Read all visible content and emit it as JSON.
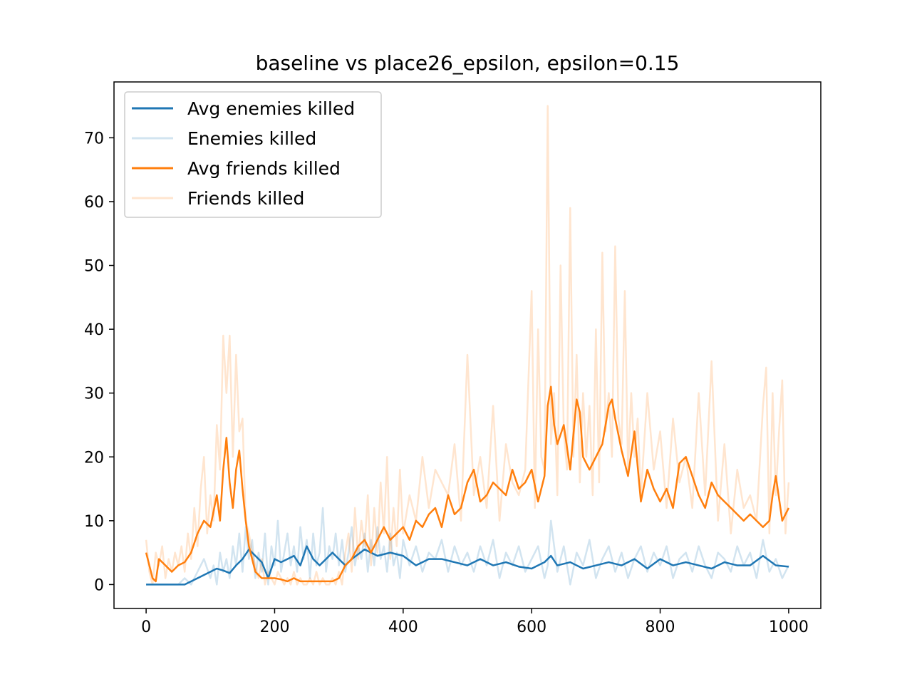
{
  "chart_data": {
    "type": "line",
    "title": "baseline vs place26_epsilon, epsilon=0.15",
    "xlabel": "",
    "ylabel": "",
    "xlim": [
      -50,
      1050
    ],
    "ylim": [
      -3.75,
      78.75
    ],
    "xticks": [
      0,
      200,
      400,
      600,
      800,
      1000
    ],
    "yticks": [
      0,
      10,
      20,
      30,
      40,
      50,
      60,
      70
    ],
    "grid": false,
    "legend_position": "top-left",
    "colors": {
      "enemies": "#1f77b4",
      "enemies_raw": "#1f77b4",
      "friends": "#ff7f0e",
      "friends_raw": "#ff7f0e"
    },
    "series": [
      {
        "name": "Avg enemies killed",
        "style": "solid",
        "opacity": 1.0,
        "color": "#1f77b4",
        "x": [
          0,
          20,
          40,
          60,
          80,
          100,
          110,
          120,
          130,
          140,
          150,
          160,
          170,
          180,
          190,
          200,
          210,
          220,
          230,
          240,
          250,
          260,
          270,
          280,
          290,
          300,
          310,
          320,
          340,
          360,
          380,
          400,
          420,
          440,
          460,
          480,
          500,
          520,
          540,
          560,
          580,
          600,
          620,
          630,
          640,
          660,
          680,
          700,
          720,
          740,
          760,
          780,
          800,
          820,
          840,
          860,
          880,
          900,
          920,
          940,
          960,
          980,
          1000
        ],
        "values": [
          0,
          0,
          0,
          0,
          1,
          2,
          2.5,
          2.2,
          1.8,
          3,
          4,
          5.5,
          4.5,
          3.5,
          1,
          4,
          3.5,
          4,
          4.5,
          3,
          6,
          4,
          3,
          4,
          5,
          4,
          3,
          4,
          5.5,
          4.5,
          5,
          4.5,
          3,
          4,
          4,
          3.5,
          3,
          4,
          3,
          3.5,
          2.8,
          2.5,
          3.5,
          4.5,
          3,
          3.5,
          2.5,
          3,
          3.5,
          3,
          4,
          2.5,
          4,
          3,
          3.5,
          3,
          2.5,
          3.5,
          3,
          3,
          4.5,
          3,
          2.8
        ]
      },
      {
        "name": "Enemies killed",
        "style": "solid",
        "opacity": 0.2,
        "color": "#1f77b4",
        "x": [
          0,
          10,
          20,
          30,
          40,
          50,
          60,
          70,
          80,
          90,
          100,
          105,
          110,
          115,
          120,
          125,
          130,
          135,
          140,
          145,
          150,
          155,
          160,
          165,
          170,
          175,
          180,
          185,
          190,
          195,
          200,
          205,
          210,
          215,
          220,
          225,
          230,
          235,
          240,
          245,
          250,
          255,
          260,
          265,
          270,
          275,
          280,
          285,
          290,
          295,
          300,
          305,
          310,
          315,
          320,
          325,
          330,
          335,
          340,
          345,
          350,
          355,
          360,
          365,
          370,
          375,
          380,
          385,
          390,
          395,
          400,
          410,
          420,
          430,
          440,
          450,
          460,
          470,
          480,
          490,
          500,
          510,
          520,
          530,
          540,
          550,
          560,
          570,
          580,
          590,
          600,
          610,
          620,
          625,
          630,
          640,
          650,
          660,
          670,
          680,
          690,
          700,
          710,
          720,
          730,
          740,
          750,
          760,
          770,
          780,
          790,
          800,
          810,
          820,
          830,
          840,
          850,
          860,
          870,
          880,
          890,
          900,
          910,
          920,
          930,
          940,
          950,
          960,
          970,
          980,
          990,
          1000
        ],
        "values": [
          0,
          0,
          0,
          0,
          0,
          0,
          1,
          0,
          2,
          4,
          1,
          3,
          0,
          5,
          2,
          4,
          1,
          6,
          3,
          8,
          2,
          9,
          4,
          7,
          1,
          5,
          2,
          8,
          0,
          6,
          3,
          10,
          2,
          5,
          8,
          3,
          6,
          2,
          9,
          4,
          7,
          1,
          8,
          3,
          5,
          12,
          2,
          6,
          4,
          8,
          3,
          7,
          2,
          5,
          9,
          3,
          6,
          4,
          8,
          2,
          7,
          3,
          9,
          4,
          6,
          2,
          8,
          3,
          5,
          1,
          7,
          3,
          6,
          2,
          5,
          4,
          7,
          2,
          6,
          3,
          5,
          2,
          6,
          3,
          7,
          1,
          5,
          3,
          6,
          2,
          4,
          6,
          1,
          3,
          10,
          2,
          6,
          0,
          5,
          3,
          7,
          1,
          4,
          6,
          2,
          5,
          1,
          4,
          6,
          2,
          5,
          3,
          6,
          1,
          4,
          5,
          2,
          6,
          3,
          1,
          5,
          4,
          2,
          6,
          3,
          5,
          1,
          7,
          2,
          4,
          1,
          3
        ]
      },
      {
        "name": "Avg friends killed",
        "style": "solid",
        "opacity": 1.0,
        "color": "#ff7f0e",
        "x": [
          0,
          5,
          10,
          15,
          20,
          30,
          40,
          50,
          60,
          70,
          80,
          90,
          100,
          110,
          115,
          120,
          125,
          130,
          135,
          140,
          145,
          150,
          155,
          160,
          170,
          180,
          190,
          200,
          210,
          220,
          230,
          240,
          250,
          260,
          270,
          280,
          290,
          300,
          310,
          320,
          330,
          340,
          350,
          360,
          370,
          380,
          390,
          400,
          410,
          420,
          430,
          440,
          450,
          460,
          470,
          480,
          490,
          500,
          510,
          520,
          530,
          540,
          550,
          560,
          570,
          580,
          590,
          600,
          610,
          620,
          625,
          630,
          635,
          640,
          650,
          660,
          670,
          675,
          680,
          690,
          700,
          710,
          720,
          725,
          730,
          740,
          750,
          760,
          770,
          780,
          790,
          800,
          810,
          820,
          830,
          840,
          850,
          860,
          870,
          880,
          890,
          900,
          910,
          920,
          930,
          940,
          950,
          960,
          970,
          975,
          980,
          990,
          1000
        ],
        "values": [
          5,
          3,
          1,
          0.5,
          4,
          3,
          2,
          3,
          3.5,
          5,
          8,
          10,
          9,
          14,
          10,
          18,
          23,
          16,
          12,
          18,
          21,
          15,
          10,
          6,
          2,
          1,
          1,
          1,
          0.8,
          0.5,
          1,
          0.5,
          0.5,
          0.5,
          0.5,
          0.5,
          0.5,
          1,
          3,
          4,
          6,
          7,
          5,
          7,
          9,
          7,
          8,
          9,
          7,
          10,
          9,
          11,
          12,
          9,
          14,
          11,
          12,
          16,
          18,
          13,
          14,
          16,
          15,
          14,
          18,
          15,
          16,
          18,
          13,
          17,
          28,
          31,
          25,
          22,
          25,
          18,
          29,
          27,
          20,
          18,
          20,
          22,
          28,
          29,
          26,
          21,
          17,
          24,
          13,
          18,
          15,
          13,
          15,
          12,
          19,
          20,
          17,
          14,
          12,
          16,
          14,
          13,
          12,
          11,
          10,
          11,
          10,
          9,
          10,
          14,
          17,
          10,
          12
        ]
      },
      {
        "name": "Friends killed",
        "style": "solid",
        "opacity": 0.2,
        "color": "#ff7f0e",
        "x": [
          0,
          5,
          10,
          15,
          20,
          25,
          30,
          35,
          40,
          45,
          50,
          55,
          60,
          65,
          70,
          75,
          80,
          85,
          90,
          95,
          100,
          105,
          110,
          115,
          120,
          125,
          130,
          135,
          140,
          145,
          150,
          155,
          160,
          165,
          170,
          175,
          180,
          185,
          190,
          195,
          200,
          205,
          210,
          215,
          220,
          225,
          230,
          235,
          240,
          245,
          250,
          255,
          260,
          265,
          270,
          275,
          280,
          285,
          290,
          295,
          300,
          305,
          310,
          315,
          320,
          325,
          330,
          335,
          340,
          345,
          350,
          355,
          360,
          365,
          370,
          375,
          380,
          385,
          390,
          395,
          400,
          410,
          420,
          430,
          440,
          450,
          460,
          470,
          480,
          490,
          500,
          510,
          520,
          530,
          540,
          550,
          560,
          570,
          580,
          590,
          600,
          605,
          610,
          615,
          620,
          625,
          630,
          635,
          640,
          645,
          650,
          655,
          660,
          665,
          670,
          675,
          680,
          685,
          690,
          695,
          700,
          705,
          710,
          715,
          720,
          725,
          730,
          735,
          740,
          745,
          750,
          755,
          760,
          765,
          770,
          775,
          780,
          790,
          800,
          810,
          820,
          830,
          840,
          850,
          860,
          870,
          880,
          890,
          900,
          910,
          920,
          930,
          940,
          950,
          960,
          965,
          970,
          975,
          980,
          985,
          990,
          995,
          1000
        ],
        "values": [
          7,
          2,
          0,
          5,
          3,
          6,
          1,
          4,
          2,
          5,
          3,
          6,
          2,
          8,
          4,
          12,
          6,
          15,
          20,
          8,
          14,
          10,
          25,
          18,
          39,
          30,
          39,
          20,
          36,
          24,
          26,
          10,
          8,
          5,
          3,
          1,
          4,
          0,
          2,
          1,
          0,
          2,
          1,
          0,
          1,
          0,
          2,
          0,
          1,
          0,
          0,
          1,
          0,
          2,
          0,
          1,
          0,
          0,
          1,
          0,
          2,
          0,
          5,
          8,
          2,
          12,
          4,
          10,
          6,
          14,
          3,
          12,
          5,
          16,
          8,
          20,
          4,
          12,
          6,
          18,
          8,
          14,
          10,
          20,
          12,
          18,
          16,
          14,
          22,
          10,
          36,
          14,
          20,
          12,
          28,
          10,
          22,
          16,
          14,
          18,
          46,
          12,
          40,
          20,
          18,
          75,
          22,
          30,
          14,
          50,
          24,
          18,
          59,
          20,
          36,
          16,
          30,
          20,
          28,
          14,
          40,
          16,
          52,
          24,
          30,
          20,
          53,
          26,
          22,
          46,
          18,
          30,
          20,
          26,
          14,
          22,
          30,
          18,
          24,
          12,
          26,
          16,
          20,
          12,
          30,
          14,
          35,
          10,
          22,
          8,
          18,
          12,
          14,
          10,
          28,
          34,
          8,
          30,
          14,
          24,
          32,
          8,
          16
        ]
      }
    ]
  }
}
